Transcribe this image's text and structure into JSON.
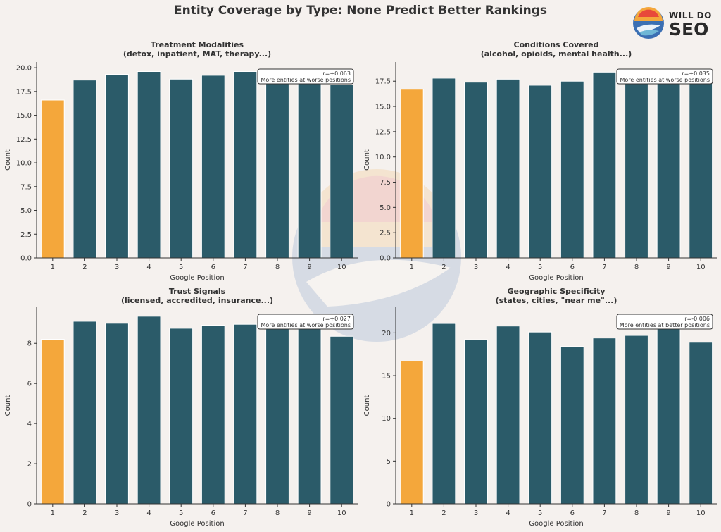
{
  "figure": {
    "title": "Entity Coverage by Type: None Predict Better Rankings",
    "logo": {
      "line1": "WILL DO",
      "line2": "SEO"
    },
    "colors": {
      "background": "#f5f1ee",
      "highlight": "#f4a73b",
      "bar": "#2b5b69",
      "text": "#333333"
    }
  },
  "chart_data": [
    {
      "type": "bar",
      "title": "Treatment Modalities",
      "subtitle": "(detox, inpatient, MAT, therapy...)",
      "xlabel": "Google Position",
      "ylabel": "Count",
      "categories": [
        "1",
        "2",
        "3",
        "4",
        "5",
        "6",
        "7",
        "8",
        "9",
        "10"
      ],
      "values": [
        16.6,
        18.7,
        19.3,
        19.6,
        18.8,
        19.2,
        19.6,
        18.9,
        19.1,
        18.2
      ],
      "ylim": [
        0,
        20.6
      ],
      "yticks": [
        0.0,
        2.5,
        5.0,
        7.5,
        10.0,
        12.5,
        15.0,
        17.5,
        20.0
      ],
      "ytick_labels": [
        "0.0",
        "2.5",
        "5.0",
        "7.5",
        "10.0",
        "12.5",
        "15.0",
        "17.5",
        "20.0"
      ],
      "annotation": {
        "line1": "r=+0.063",
        "line2": "More entities at worse positions",
        "placement": "top-right"
      },
      "highlight_index": 0
    },
    {
      "type": "bar",
      "title": "Conditions Covered",
      "subtitle": "(alcohol, opioids, mental health...)",
      "xlabel": "Google Position",
      "ylabel": "Count",
      "categories": [
        "1",
        "2",
        "3",
        "4",
        "5",
        "6",
        "7",
        "8",
        "9",
        "10"
      ],
      "values": [
        16.7,
        17.8,
        17.4,
        17.7,
        17.1,
        17.5,
        18.4,
        18.1,
        18.1,
        17.7
      ],
      "ylim": [
        0,
        19.4
      ],
      "yticks": [
        0.0,
        2.5,
        5.0,
        7.5,
        10.0,
        12.5,
        15.0,
        17.5
      ],
      "ytick_labels": [
        "0.0",
        "2.5",
        "5.0",
        "7.5",
        "10.0",
        "12.5",
        "15.0",
        "17.5"
      ],
      "annotation": {
        "line1": "r=+0.035",
        "line2": "More entities at worse positions",
        "placement": "top-right"
      },
      "highlight_index": 0
    },
    {
      "type": "bar",
      "title": "Trust Signals",
      "subtitle": "(licensed, accredited, insurance...)",
      "xlabel": "Google Position",
      "ylabel": "Count",
      "categories": [
        "1",
        "2",
        "3",
        "4",
        "5",
        "6",
        "7",
        "8",
        "9",
        "10"
      ],
      "values": [
        8.2,
        9.1,
        9.0,
        9.35,
        8.75,
        8.9,
        8.95,
        8.8,
        9.0,
        8.35
      ],
      "ylim": [
        0,
        9.8
      ],
      "yticks": [
        0,
        2,
        4,
        6,
        8
      ],
      "ytick_labels": [
        "0",
        "2",
        "4",
        "6",
        "8"
      ],
      "annotation": {
        "line1": "r=+0.027",
        "line2": "More entities at worse positions",
        "placement": "top-right"
      },
      "highlight_index": 0
    },
    {
      "type": "bar",
      "title": "Geographic Specificity",
      "subtitle": "(states, cities, \"near me\"...)",
      "xlabel": "Google Position",
      "ylabel": "Count",
      "categories": [
        "1",
        "2",
        "3",
        "4",
        "5",
        "6",
        "7",
        "8",
        "9",
        "10"
      ],
      "values": [
        16.7,
        21.1,
        19.2,
        20.8,
        20.1,
        18.4,
        19.4,
        19.7,
        21.8,
        18.9
      ],
      "ylim": [
        0,
        23.0
      ],
      "yticks": [
        0,
        5,
        10,
        15,
        20
      ],
      "ytick_labels": [
        "0",
        "5",
        "10",
        "15",
        "20"
      ],
      "annotation": {
        "line1": "r=-0.006",
        "line2": "More entities at better positions",
        "placement": "top-right"
      },
      "highlight_index": 0
    }
  ]
}
